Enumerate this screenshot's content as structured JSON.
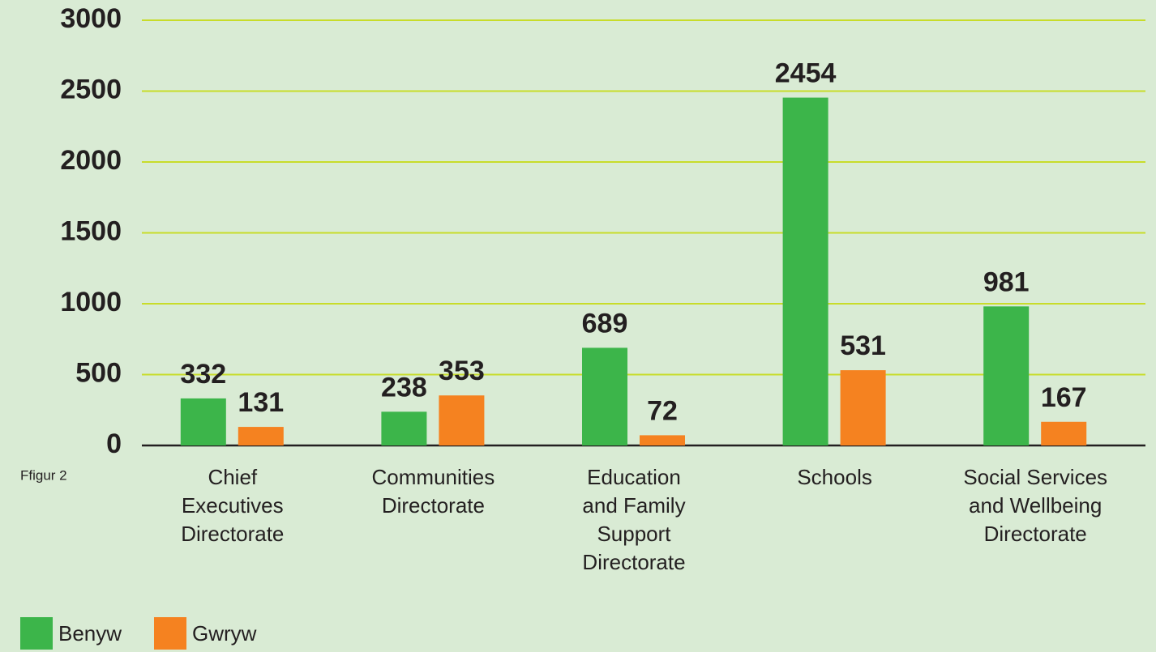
{
  "chart_data": {
    "type": "bar",
    "categories": [
      "Chief\nExecutives\nDirectorate",
      "Communities\nDirectorate",
      "Education\nand Family\nSupport\nDirectorate",
      "Schools",
      "Social Services\nand Wellbeing\nDirectorate"
    ],
    "series": [
      {
        "name": "Benyw",
        "color": "#3cb54a",
        "values": [
          332,
          238,
          689,
          2454,
          981
        ]
      },
      {
        "name": "Gwryw",
        "color": "#f58220",
        "values": [
          131,
          353,
          72,
          531,
          167
        ]
      }
    ],
    "ylim": [
      0,
      3000
    ],
    "yticks": [
      0,
      500,
      1000,
      1500,
      2000,
      2500,
      3000
    ],
    "grid": true,
    "annotations": [
      "Ffigur 2"
    ],
    "legend": "bottom-left"
  }
}
